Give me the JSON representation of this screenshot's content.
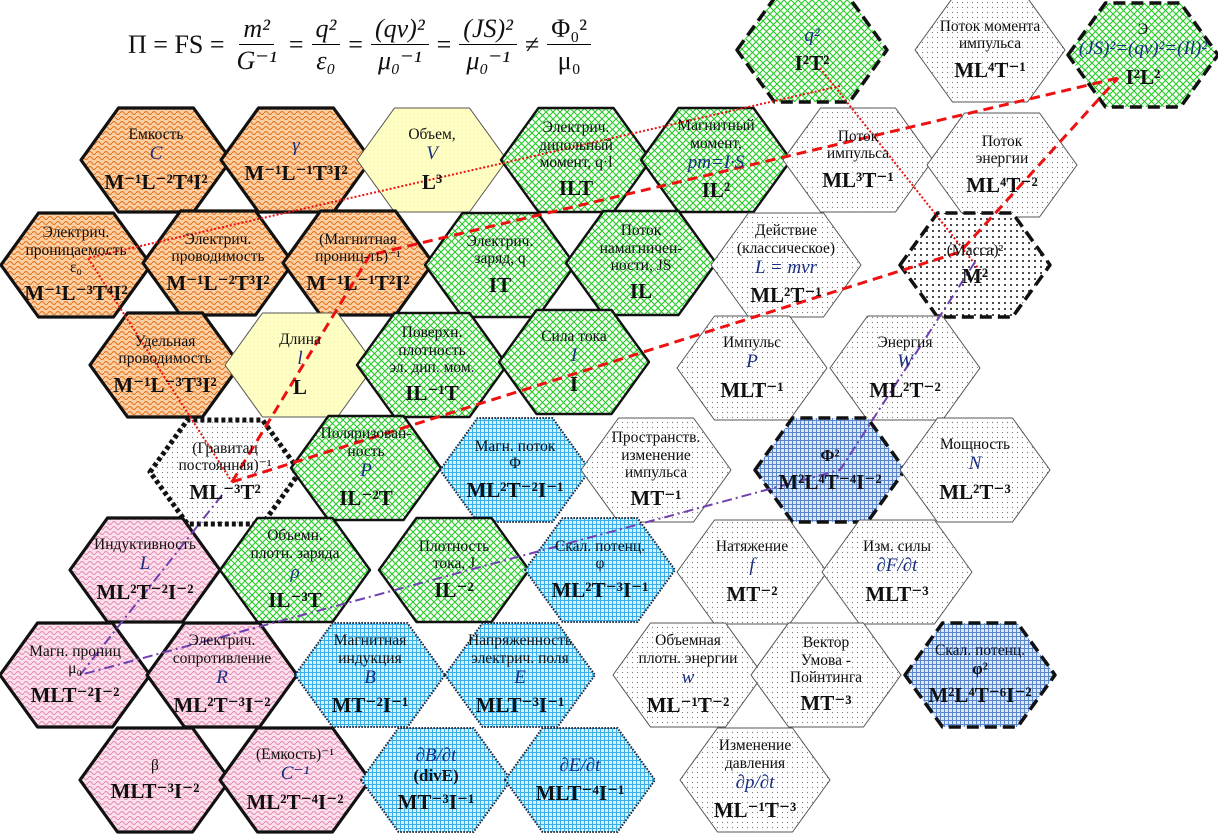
{
  "formula": {
    "lhs": "Π = FS =",
    "fractions": [
      {
        "num": "m²",
        "den": "G⁻¹"
      },
      {
        "num": "q²",
        "den": "ε₀"
      },
      {
        "num": "(qv)²",
        "den": "μ₀⁻¹"
      },
      {
        "num": "(JS)²",
        "den": "μ₀⁻¹"
      },
      {
        "num": "Φ₀²",
        "den": "μ₀"
      }
    ],
    "ops": [
      "=",
      "=",
      "=",
      "≠"
    ]
  },
  "colors": {
    "orange": "#f0a060",
    "green": "#22cc22",
    "blue": "#40b0e8",
    "pink": "#f0a8c8",
    "yellow": "#ffffc0",
    "red": "#ee1111",
    "purple": "#7040b0"
  },
  "hexes": [
    {
      "name": "q-squared",
      "group": "green",
      "border": "dashed",
      "lines": [
        {
          "t": "q²",
          "k": "s"
        },
        {
          "t": "I²T²",
          "k": "d"
        }
      ]
    },
    {
      "name": "angular-momentum-flux",
      "group": "gray",
      "border": "thin",
      "lines": [
        {
          "t": "Поток момента",
          "k": "l"
        },
        {
          "t": "импульса",
          "k": "l"
        },
        {
          "t": "ML⁴T⁻¹",
          "k": "d"
        }
      ]
    },
    {
      "name": "e-squared",
      "group": "green",
      "border": "dashed",
      "lines": [
        {
          "t": "Э",
          "k": "l"
        },
        {
          "t": "(JS)²=(qv)²=(Il)²",
          "k": "s"
        },
        {
          "t": "I²L²",
          "k": "d"
        }
      ]
    },
    {
      "name": "capacitance",
      "group": "orange",
      "border": "thick",
      "lines": [
        {
          "t": "Емкость",
          "k": "l"
        },
        {
          "t": "C",
          "k": "s"
        },
        {
          "t": "M⁻¹L⁻²T⁴I²",
          "k": "d"
        }
      ]
    },
    {
      "name": "gamma",
      "group": "orange",
      "border": "thick",
      "lines": [
        {
          "t": "γ",
          "k": "s"
        },
        {
          "t": "M⁻¹L⁻¹T³I²",
          "k": "d"
        }
      ]
    },
    {
      "name": "volume",
      "group": "yellow",
      "border": "thin",
      "lines": [
        {
          "t": "Объем,",
          "k": "l"
        },
        {
          "t": "V",
          "k": "s"
        },
        {
          "t": "L³",
          "k": "d"
        }
      ]
    },
    {
      "name": "electric-dipole-moment",
      "group": "green",
      "border": "green",
      "lines": [
        {
          "t": "Электрич.",
          "k": "l"
        },
        {
          "t": "дипольный",
          "k": "l"
        },
        {
          "t": "момент, q·l",
          "k": "l"
        },
        {
          "t": "ILT",
          "k": "d"
        }
      ]
    },
    {
      "name": "magnetic-moment",
      "group": "green",
      "border": "green",
      "lines": [
        {
          "t": "Магнитный",
          "k": "l"
        },
        {
          "t": "момент,",
          "k": "l"
        },
        {
          "t": "pm=I·S",
          "k": "s"
        },
        {
          "t": "IL²",
          "k": "d"
        }
      ]
    },
    {
      "name": "momentum-flux",
      "group": "gray",
      "border": "thin",
      "lines": [
        {
          "t": "Поток",
          "k": "l"
        },
        {
          "t": "импульса",
          "k": "l"
        },
        {
          "t": "ML³T⁻¹",
          "k": "d"
        }
      ]
    },
    {
      "name": "energy-flux",
      "group": "gray",
      "border": "thin",
      "lines": [
        {
          "t": "Поток",
          "k": "l"
        },
        {
          "t": "энергии",
          "k": "l"
        },
        {
          "t": "ML⁴T⁻²",
          "k": "d"
        }
      ]
    },
    {
      "name": "permittivity",
      "group": "orange",
      "border": "thick",
      "lines": [
        {
          "t": "Электрич.",
          "k": "l"
        },
        {
          "t": "проницаемость",
          "k": "l"
        },
        {
          "t": "ε₀",
          "k": "l"
        },
        {
          "t": "M⁻¹L⁻³T⁴I²",
          "k": "d"
        }
      ]
    },
    {
      "name": "conductance",
      "group": "orange",
      "border": "thick",
      "lines": [
        {
          "t": "Электрич.",
          "k": "l"
        },
        {
          "t": "проводимость",
          "k": "l"
        },
        {
          "t": "M⁻¹L⁻²T³I²",
          "k": "d"
        }
      ]
    },
    {
      "name": "inverse-permeability",
      "group": "orange",
      "border": "thick",
      "lines": [
        {
          "t": "(Магнитная",
          "k": "l"
        },
        {
          "t": "прониц-ть)⁻¹",
          "k": "l"
        },
        {
          "t": "M⁻¹L⁻¹T²I²",
          "k": "d"
        }
      ]
    },
    {
      "name": "electric-charge",
      "group": "green",
      "border": "green",
      "lines": [
        {
          "t": "Электрич.",
          "k": "l"
        },
        {
          "t": "заряд, q",
          "k": "l"
        },
        {
          "t": "IT",
          "k": "d"
        }
      ]
    },
    {
      "name": "magnetization-flux",
      "group": "green",
      "border": "green",
      "lines": [
        {
          "t": "Поток",
          "k": "l"
        },
        {
          "t": "намагничен-",
          "k": "l"
        },
        {
          "t": "ности, JS",
          "k": "l"
        },
        {
          "t": "IL",
          "k": "d"
        }
      ]
    },
    {
      "name": "action",
      "group": "gray",
      "border": "thin",
      "lines": [
        {
          "t": "Действие",
          "k": "l"
        },
        {
          "t": "(классическое)",
          "k": "l"
        },
        {
          "t": "L = mvr",
          "k": "s"
        },
        {
          "t": "ML²T⁻¹",
          "k": "d"
        }
      ]
    },
    {
      "name": "mass-squared",
      "group": "dots",
      "border": "dashed",
      "lines": [
        {
          "t": "(Масса)²",
          "k": "l"
        },
        {
          "t": "M²",
          "k": "d"
        }
      ]
    },
    {
      "name": "specific-conductivity",
      "group": "orange",
      "border": "thick",
      "lines": [
        {
          "t": "Удельная",
          "k": "l"
        },
        {
          "t": "проводимость",
          "k": "l"
        },
        {
          "t": "M⁻¹L⁻³T³I²",
          "k": "d"
        }
      ]
    },
    {
      "name": "length",
      "group": "yellow",
      "border": "thin",
      "lines": [
        {
          "t": "Длина",
          "k": "l"
        },
        {
          "t": "l",
          "k": "s"
        },
        {
          "t": "L",
          "k": "d"
        }
      ]
    },
    {
      "name": "surface-dipole-density",
      "group": "green",
      "border": "green",
      "lines": [
        {
          "t": "Поверхн.",
          "k": "l"
        },
        {
          "t": "плотность",
          "k": "l"
        },
        {
          "t": "эл. дип. мом.",
          "k": "l"
        },
        {
          "t": "IL⁻¹T",
          "k": "d"
        }
      ]
    },
    {
      "name": "current",
      "group": "green",
      "border": "green",
      "lines": [
        {
          "t": "Сила тока",
          "k": "l"
        },
        {
          "t": "I",
          "k": "s"
        },
        {
          "t": "I",
          "k": "d"
        }
      ]
    },
    {
      "name": "momentum",
      "group": "gray",
      "border": "thin",
      "lines": [
        {
          "t": "Импульс",
          "k": "l"
        },
        {
          "t": "P",
          "k": "s"
        },
        {
          "t": "MLT⁻¹",
          "k": "d"
        }
      ]
    },
    {
      "name": "energy",
      "group": "gray",
      "border": "thin",
      "lines": [
        {
          "t": "Энергия",
          "k": "l"
        },
        {
          "t": "W",
          "k": "s"
        },
        {
          "t": "ML²T⁻²",
          "k": "d"
        }
      ]
    },
    {
      "name": "inverse-gravitational-constant",
      "group": "gray",
      "border": "dotbold",
      "lines": [
        {
          "t": "(Гравитац",
          "k": "l"
        },
        {
          "t": "постоянная)⁻¹",
          "k": "l"
        },
        {
          "t": "ML⁻³T²",
          "k": "d"
        }
      ]
    },
    {
      "name": "polarization",
      "group": "green",
      "border": "green",
      "lines": [
        {
          "t": "Поляризован-",
          "k": "l"
        },
        {
          "t": "ность",
          "k": "l"
        },
        {
          "t": "P",
          "k": "s"
        },
        {
          "t": "IL⁻²T",
          "k": "d"
        }
      ]
    },
    {
      "name": "magnetic-flux",
      "group": "blue",
      "border": "dotted",
      "lines": [
        {
          "t": "Магн. поток",
          "k": "l"
        },
        {
          "t": "Φ",
          "k": "l"
        },
        {
          "t": "ML²T⁻²I⁻¹",
          "k": "d"
        }
      ]
    },
    {
      "name": "spatial-momentum-change",
      "group": "gray",
      "border": "thin",
      "lines": [
        {
          "t": "Пространств.",
          "k": "l"
        },
        {
          "t": "изменение",
          "k": "l"
        },
        {
          "t": "импульса",
          "k": "l"
        },
        {
          "t": "MT⁻¹",
          "k": "d"
        }
      ]
    },
    {
      "name": "flux-squared",
      "group": "blue2",
      "border": "dashed",
      "lines": [
        {
          "t": "Φ²",
          "k": "b"
        },
        {
          "t": "M²L⁴T⁻⁴I⁻²",
          "k": "d"
        }
      ]
    },
    {
      "name": "power",
      "group": "gray",
      "border": "thin",
      "lines": [
        {
          "t": "Мощность",
          "k": "l"
        },
        {
          "t": "N",
          "k": "s"
        },
        {
          "t": "ML²T⁻³",
          "k": "d"
        }
      ]
    },
    {
      "name": "inductance",
      "group": "pink",
      "border": "thick",
      "lines": [
        {
          "t": "Индуктивность",
          "k": "l"
        },
        {
          "t": "L",
          "k": "s"
        },
        {
          "t": "ML²T⁻²I⁻²",
          "k": "d"
        }
      ]
    },
    {
      "name": "volume-charge-density",
      "group": "green",
      "border": "green",
      "lines": [
        {
          "t": "Объемн.",
          "k": "l"
        },
        {
          "t": "плотн. заряда",
          "k": "l"
        },
        {
          "t": "ρ",
          "k": "s"
        },
        {
          "t": "IL⁻³T",
          "k": "d"
        }
      ]
    },
    {
      "name": "current-density",
      "group": "green",
      "border": "green",
      "lines": [
        {
          "t": "Плотность",
          "k": "l"
        },
        {
          "t": "тока, J",
          "k": "l"
        },
        {
          "t": "IL⁻²",
          "k": "d"
        }
      ]
    },
    {
      "name": "scalar-potential",
      "group": "blue",
      "border": "dotted",
      "lines": [
        {
          "t": "Скал. потенц.",
          "k": "l"
        },
        {
          "t": "φ",
          "k": "l"
        },
        {
          "t": "ML²T⁻³I⁻¹",
          "k": "d"
        }
      ]
    },
    {
      "name": "tension",
      "group": "gray",
      "border": "thin",
      "lines": [
        {
          "t": "Натяжение",
          "k": "l"
        },
        {
          "t": "f",
          "k": "s"
        },
        {
          "t": "MT⁻²",
          "k": "d"
        }
      ]
    },
    {
      "name": "force-change",
      "group": "gray",
      "border": "thin",
      "lines": [
        {
          "t": "Изм. силы",
          "k": "l"
        },
        {
          "t": "∂F/∂t",
          "k": "s"
        },
        {
          "t": "MLT⁻³",
          "k": "d"
        }
      ]
    },
    {
      "name": "magnetic-permeability",
      "group": "pink",
      "border": "thick",
      "lines": [
        {
          "t": "Магн. прониц",
          "k": "l"
        },
        {
          "t": "μ₀",
          "k": "l"
        },
        {
          "t": "MLT⁻²I⁻²",
          "k": "d"
        }
      ]
    },
    {
      "name": "electric-resistance",
      "group": "pink",
      "border": "thick",
      "lines": [
        {
          "t": "Электрич.",
          "k": "l"
        },
        {
          "t": "сопротивление",
          "k": "l"
        },
        {
          "t": "R",
          "k": "s"
        },
        {
          "t": "ML²T⁻³I⁻²",
          "k": "d"
        }
      ]
    },
    {
      "name": "magnetic-induction",
      "group": "blue",
      "border": "dotted",
      "lines": [
        {
          "t": "Магнитная",
          "k": "l"
        },
        {
          "t": "индукция",
          "k": "l"
        },
        {
          "t": "B",
          "k": "s"
        },
        {
          "t": "MT⁻²I⁻¹",
          "k": "d"
        }
      ]
    },
    {
      "name": "electric-field-strength",
      "group": "blue",
      "border": "dotted",
      "lines": [
        {
          "t": "Напряженность",
          "k": "l"
        },
        {
          "t": "электрич. поля",
          "k": "l"
        },
        {
          "t": "E",
          "k": "s"
        },
        {
          "t": "MLT⁻³I⁻¹",
          "k": "d"
        }
      ]
    },
    {
      "name": "energy-density",
      "group": "gray",
      "border": "thin",
      "lines": [
        {
          "t": "Объемная",
          "k": "l"
        },
        {
          "t": "плотн. энергии",
          "k": "l"
        },
        {
          "t": "w",
          "k": "s"
        },
        {
          "t": "ML⁻¹T⁻²",
          "k": "d"
        }
      ]
    },
    {
      "name": "umov-poynting-vector",
      "group": "gray",
      "border": "thin",
      "lines": [
        {
          "t": "Вектор",
          "k": "l"
        },
        {
          "t": "Умова -",
          "k": "l"
        },
        {
          "t": "Пойнтинга",
          "k": "l"
        },
        {
          "t": "MT⁻³",
          "k": "d"
        }
      ]
    },
    {
      "name": "scalar-potential-squared",
      "group": "blue2",
      "border": "dashed",
      "lines": [
        {
          "t": "Скал. потенц.",
          "k": "l"
        },
        {
          "t": "φ²",
          "k": "b"
        },
        {
          "t": "M²L⁴T⁻⁶I⁻²",
          "k": "d"
        }
      ]
    },
    {
      "name": "beta",
      "group": "pink",
      "border": "thick",
      "lines": [
        {
          "t": "β",
          "k": "l"
        },
        {
          "t": "MLT⁻³I⁻²",
          "k": "d"
        }
      ]
    },
    {
      "name": "inverse-capacitance",
      "group": "pink",
      "border": "thick",
      "lines": [
        {
          "t": "(Емкость)⁻¹",
          "k": "l"
        },
        {
          "t": "C⁻¹",
          "k": "s"
        },
        {
          "t": "ML²T⁻⁴I⁻²",
          "k": "d"
        }
      ]
    },
    {
      "name": "db-dt",
      "group": "blue",
      "border": "dotted",
      "lines": [
        {
          "t": "∂B/∂t",
          "k": "s"
        },
        {
          "t": "(divE)",
          "k": "b"
        },
        {
          "t": "MT⁻³I⁻¹",
          "k": "d"
        }
      ]
    },
    {
      "name": "de-dt",
      "group": "blue",
      "border": "dotted",
      "lines": [
        {
          "t": "∂E/∂t",
          "k": "s"
        },
        {
          "t": "MLT⁻⁴I⁻¹",
          "k": "d"
        }
      ]
    },
    {
      "name": "pressure-change",
      "group": "gray",
      "border": "thin",
      "lines": [
        {
          "t": "Изменение",
          "k": "l"
        },
        {
          "t": "давления",
          "k": "l"
        },
        {
          "t": "∂p/∂t",
          "k": "s"
        },
        {
          "t": "ML⁻¹T⁻³",
          "k": "d"
        }
      ]
    }
  ]
}
